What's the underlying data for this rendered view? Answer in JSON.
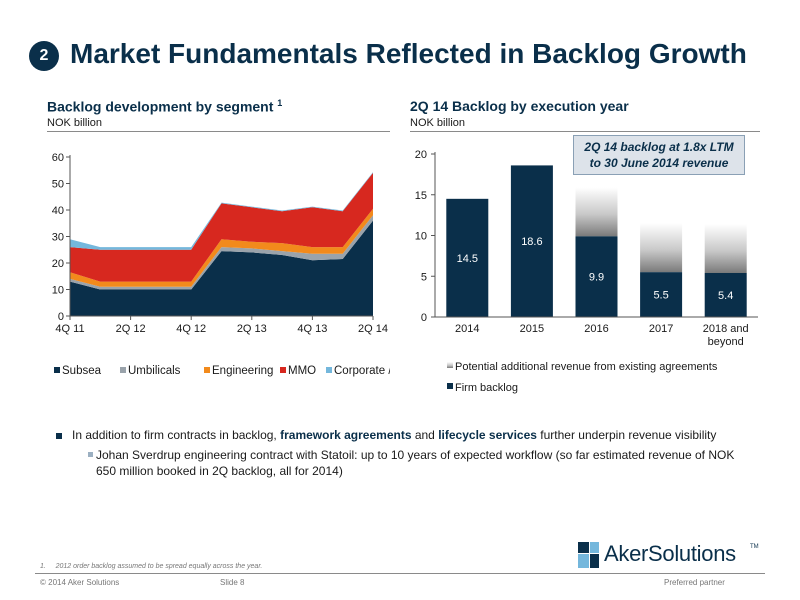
{
  "page": {
    "badge": "2",
    "title": "Market Fundamentals Reflected in Backlog Growth"
  },
  "colors": {
    "navy": "#0a2f4a",
    "subsea": "#0a2f4a",
    "umbilicals": "#9aa3ab",
    "engineering": "#f28a1c",
    "mmo": "#d7281f",
    "corporate": "#74b7dc",
    "potential": "#bfbfbf"
  },
  "left_chart": {
    "title": "Backlog development by segment",
    "title_sup": "1",
    "unit": "NOK billion"
  },
  "right_chart": {
    "title": "2Q 14 Backlog by execution year",
    "unit": "NOK billion",
    "annotation_line1": "2Q 14 backlog at 1.8x LTM",
    "annotation_line2": "to 30 June 2014 revenue"
  },
  "chart_data": [
    {
      "type": "area",
      "stacked": true,
      "title": "Backlog development by segment",
      "ylabel": "NOK billion",
      "x": [
        "4Q 11",
        "1Q 12",
        "2Q 12",
        "3Q 12",
        "4Q 12",
        "1Q 13",
        "2Q 13",
        "3Q 13",
        "4Q 13",
        "1Q 14",
        "2Q 14"
      ],
      "xtick_labels": [
        "4Q 11",
        "2Q 12",
        "4Q 12",
        "2Q 13",
        "4Q 13",
        "2Q 14"
      ],
      "ylim": [
        0,
        60
      ],
      "yticks": [
        0,
        10,
        20,
        30,
        40,
        50,
        60
      ],
      "grid": false,
      "legend": "bottom",
      "series": [
        {
          "name": "Subsea",
          "color": "#0a2f4a",
          "values": [
            13,
            10,
            10,
            10,
            10,
            24.5,
            24,
            23,
            21,
            21.5,
            36
          ]
        },
        {
          "name": "Umbilicals",
          "color": "#9aa3ab",
          "values": [
            1,
            1,
            1,
            1,
            1,
            1.5,
            1.5,
            1.5,
            2.5,
            2,
            2
          ]
        },
        {
          "name": "Engineering",
          "color": "#f28a1c",
          "values": [
            2.5,
            2,
            2,
            2,
            2,
            3,
            2.5,
            3,
            2.5,
            2.5,
            2.5
          ]
        },
        {
          "name": "MMO",
          "color": "#d7281f",
          "values": [
            9.5,
            12,
            12,
            12,
            12,
            13.5,
            13,
            12,
            15,
            13.5,
            13.5
          ]
        },
        {
          "name": "Corporate / other",
          "color": "#74b7dc",
          "values": [
            3,
            1,
            1,
            1,
            1,
            0.3,
            0.3,
            0.3,
            0.3,
            0.3,
            0.3
          ]
        }
      ]
    },
    {
      "type": "bar",
      "stacked": true,
      "title": "2Q 14 Backlog by execution year",
      "ylabel": "NOK billion",
      "categories": [
        "2014",
        "2015",
        "2016",
        "2017",
        "2018 and beyond"
      ],
      "ylim": [
        0,
        20
      ],
      "yticks": [
        0,
        5,
        10,
        15,
        20
      ],
      "grid": false,
      "legend": "bottom",
      "series": [
        {
          "name": "Firm backlog",
          "color": "#0a2f4a",
          "values": [
            14.5,
            18.6,
            9.9,
            5.5,
            5.4
          ],
          "labels": [
            "14.5",
            "18.6",
            "9.9",
            "5.5",
            "5.4"
          ]
        },
        {
          "name": "Potential additional revenue from existing agreements",
          "color": "#bfbfbf",
          "values": [
            0,
            0,
            6,
            6,
            6
          ]
        }
      ]
    }
  ],
  "bullets": {
    "b1_part1": "In addition to firm contracts in backlog, ",
    "b1_hl1": "framework agreements",
    "b1_part2": " and ",
    "b1_hl2": "lifecycle services",
    "b1_part3": " further underpin revenue visibility",
    "b2": "Johan Sverdrup engineering contract with Statoil: up to 10 years of expected workflow (so far estimated revenue of NOK 650 million booked in 2Q backlog, all for 2014)"
  },
  "footer": {
    "footnote_num": "1.",
    "footnote_text": "2012 order backlog assumed to be spread equally across the year.",
    "copyright": "© 2014 Aker Solutions",
    "slide": "Slide 8",
    "tagline": "Preferred partner",
    "logo_text": "AkerSolutions",
    "logo_tm": "TM"
  }
}
